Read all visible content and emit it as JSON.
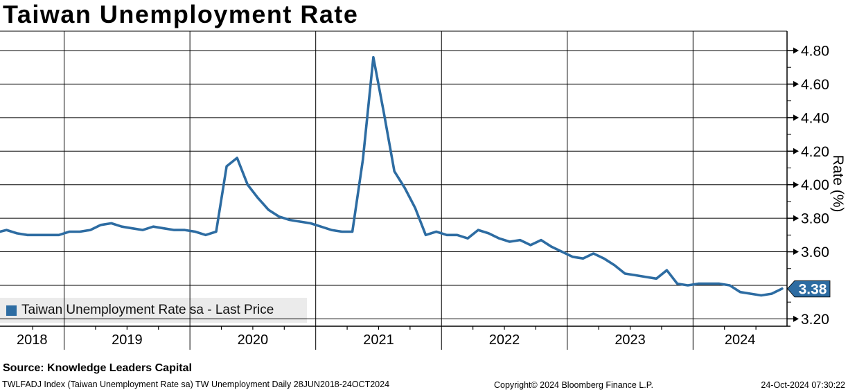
{
  "title": "Taiwan Unemployment Rate",
  "legend": {
    "label": "Taiwan Unemployment Rate sa - Last Price"
  },
  "last_price": {
    "value": "3.38"
  },
  "y_axis": {
    "label": "Rate (%)",
    "major_ticks": [
      "4.80",
      "4.60",
      "4.40",
      "4.20",
      "4.00",
      "3.80",
      "3.60",
      "3.20"
    ],
    "minor_ticks": [
      4.7,
      4.5,
      4.3,
      4.1,
      3.9,
      3.7,
      3.5,
      3.3
    ]
  },
  "x_axis": {
    "years": [
      "2018",
      "2019",
      "2020",
      "2021",
      "2022",
      "2023",
      "2024"
    ]
  },
  "source": {
    "text": "Source: Knowledge Leaders Capital"
  },
  "footer": {
    "left": "TWLFADJ Index (Taiwan Unemployment Rate sa) TW Unemployment  Daily 28JUN2018-24OCT2024",
    "center": "Copyright© 2024 Bloomberg Finance L.P.",
    "right": "24-Oct-2024 07:30:22"
  },
  "colors": {
    "line": "#2d6ca2",
    "badge_bg": "#2d6ca2",
    "badge_text": "#ffffff",
    "grid": "#000000",
    "legend_bg": "#ebebeb"
  },
  "chart_data": {
    "type": "line",
    "title": "Taiwan Unemployment Rate",
    "series_name": "Taiwan Unemployment Rate sa - Last Price",
    "xlabel": "",
    "ylabel": "Rate (%)",
    "ylim": [
      3.16,
      4.92
    ],
    "ytick_step": 0.2,
    "xrange": [
      "28JUN2018",
      "24OCT2024"
    ],
    "grid": true,
    "legend_position": "bottom-left",
    "last_price": 3.38,
    "x": [
      "2018-06",
      "2018-07",
      "2018-08",
      "2018-09",
      "2018-10",
      "2018-11",
      "2018-12",
      "2019-01",
      "2019-02",
      "2019-03",
      "2019-04",
      "2019-05",
      "2019-06",
      "2019-07",
      "2019-08",
      "2019-09",
      "2019-10",
      "2019-11",
      "2019-12",
      "2020-01",
      "2020-02",
      "2020-03",
      "2020-04",
      "2020-05",
      "2020-06",
      "2020-07",
      "2020-08",
      "2020-09",
      "2020-10",
      "2020-11",
      "2020-12",
      "2021-01",
      "2021-02",
      "2021-03",
      "2021-04",
      "2021-05",
      "2021-06",
      "2021-07",
      "2021-08",
      "2021-09",
      "2021-10",
      "2021-11",
      "2021-12",
      "2022-01",
      "2022-02",
      "2022-03",
      "2022-04",
      "2022-05",
      "2022-06",
      "2022-07",
      "2022-08",
      "2022-09",
      "2022-10",
      "2022-11",
      "2022-12",
      "2023-01",
      "2023-02",
      "2023-03",
      "2023-04",
      "2023-05",
      "2023-06",
      "2023-07",
      "2023-08",
      "2023-09",
      "2023-10",
      "2023-11",
      "2023-12",
      "2024-01",
      "2024-02",
      "2024-03",
      "2024-04",
      "2024-05",
      "2024-06",
      "2024-07",
      "2024-08",
      "2024-09"
    ],
    "values": [
      3.72,
      3.73,
      3.71,
      3.7,
      3.7,
      3.7,
      3.7,
      3.72,
      3.72,
      3.73,
      3.76,
      3.77,
      3.75,
      3.74,
      3.73,
      3.75,
      3.74,
      3.73,
      3.73,
      3.72,
      3.7,
      3.72,
      4.11,
      4.16,
      4.0,
      3.92,
      3.85,
      3.81,
      3.79,
      3.78,
      3.77,
      3.75,
      3.73,
      3.72,
      3.72,
      4.15,
      4.76,
      4.43,
      4.08,
      3.98,
      3.86,
      3.7,
      3.72,
      3.7,
      3.7,
      3.68,
      3.73,
      3.71,
      3.68,
      3.66,
      3.67,
      3.64,
      3.67,
      3.63,
      3.6,
      3.57,
      3.56,
      3.59,
      3.56,
      3.52,
      3.47,
      3.46,
      3.45,
      3.44,
      3.49,
      3.41,
      3.4,
      3.41,
      3.41,
      3.41,
      3.4,
      3.36,
      3.35,
      3.34,
      3.35,
      3.38
    ]
  }
}
